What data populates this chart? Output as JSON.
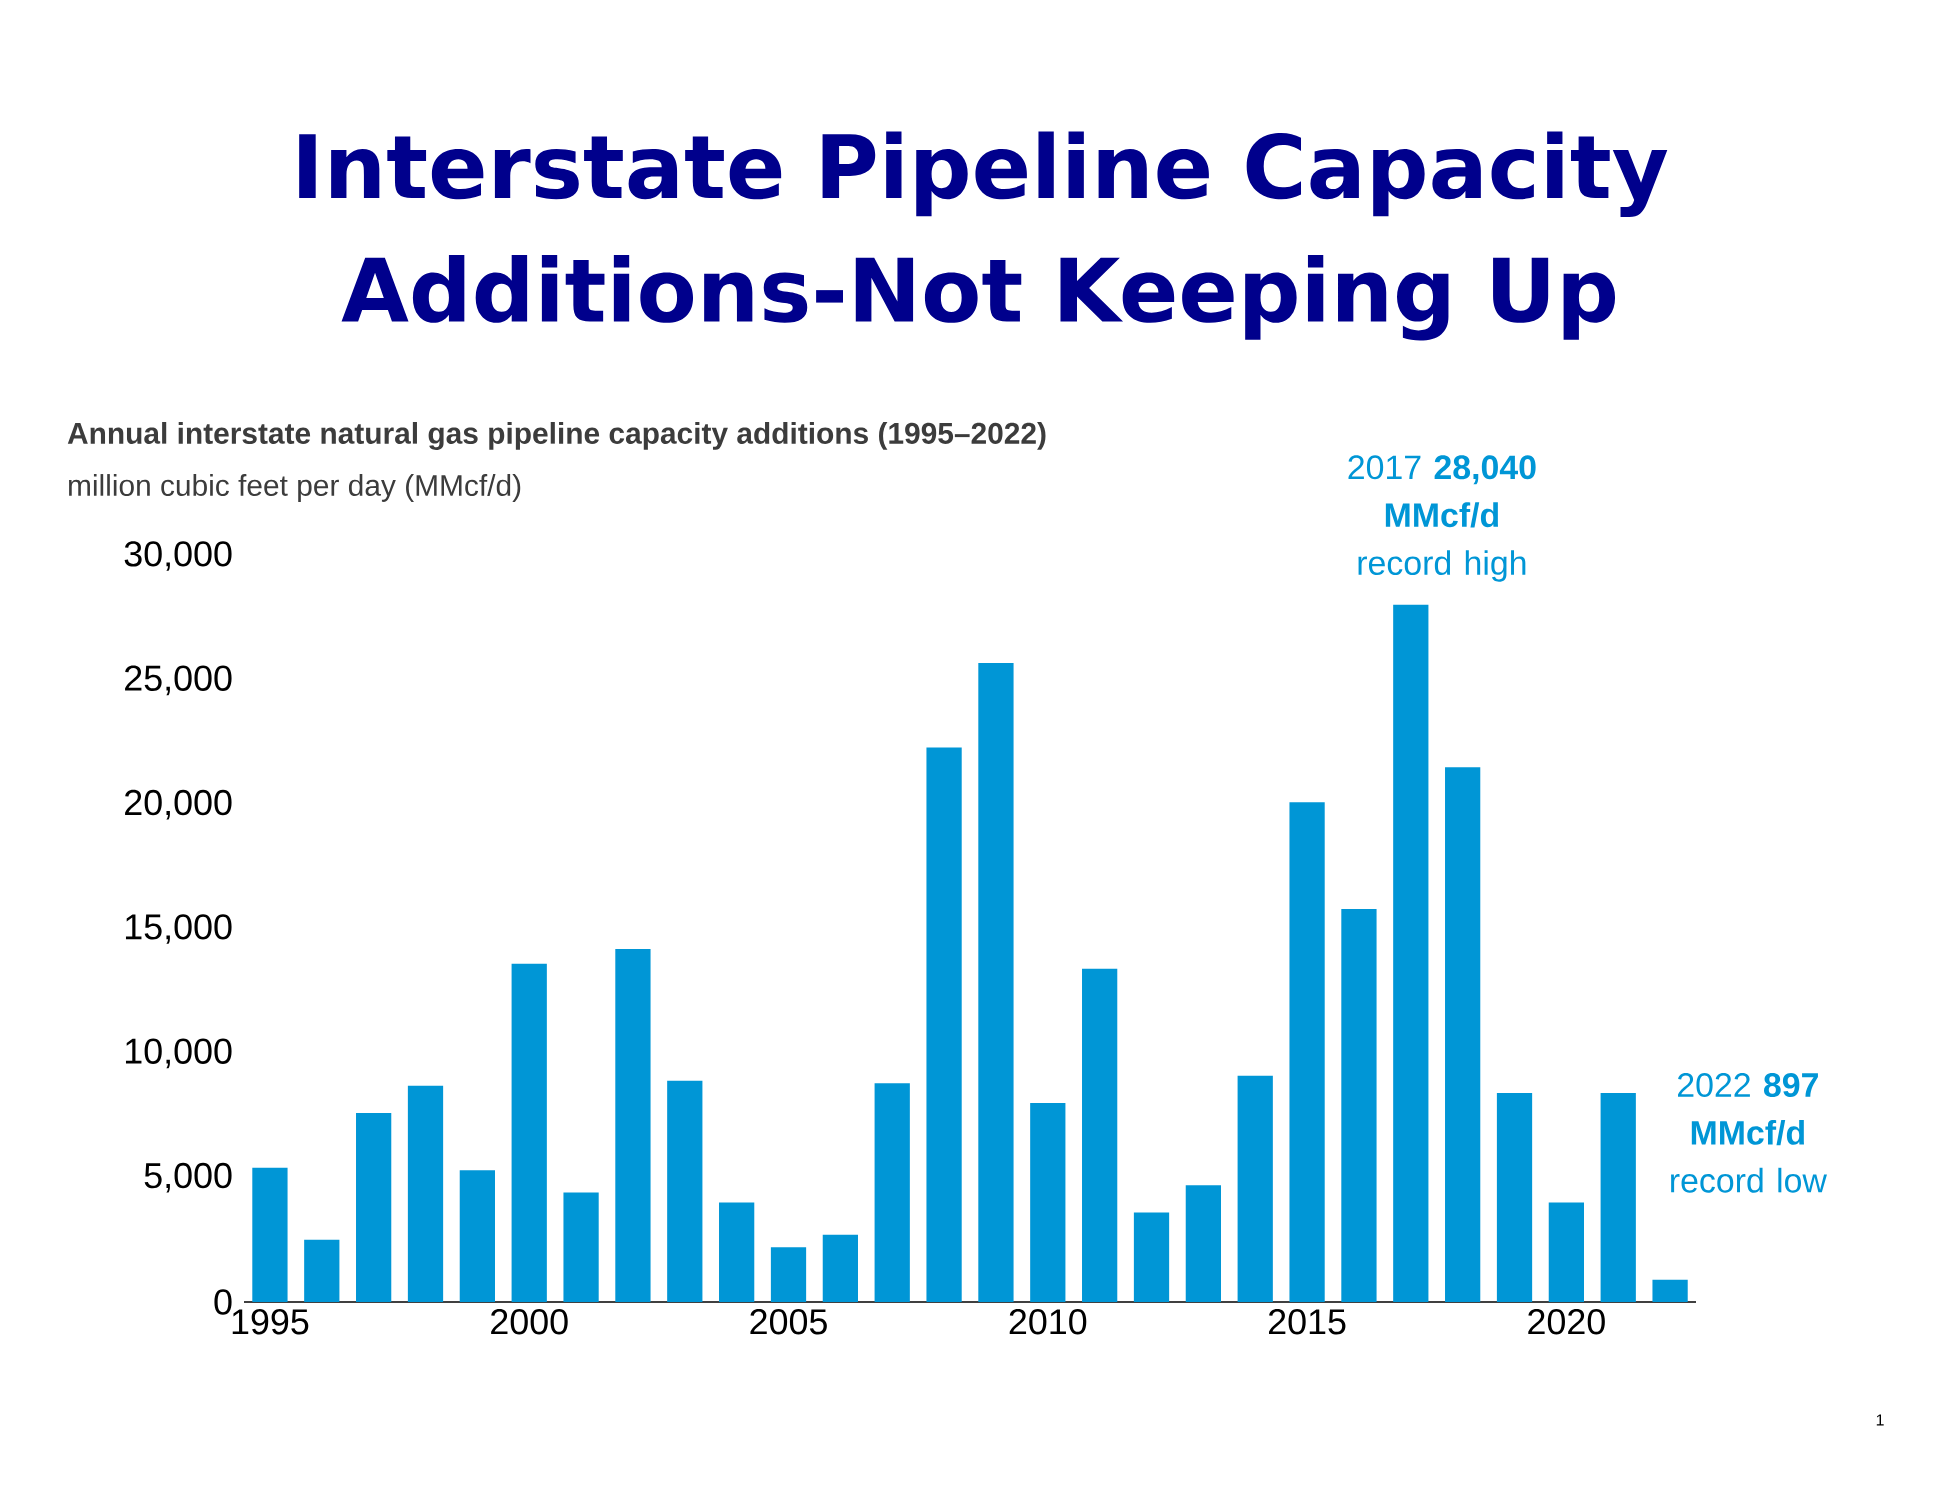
{
  "chart_data": {
    "type": "bar",
    "title": "Interstate Pipeline Capacity Additions-Not Keeping Up",
    "subtitle": "Annual interstate natural gas pipeline capacity additions (1995–2022)",
    "ylabel": "million cubic feet per day (MMcf/d)",
    "x": [
      1995,
      1996,
      1997,
      1998,
      1999,
      2000,
      2001,
      2002,
      2003,
      2004,
      2005,
      2006,
      2007,
      2008,
      2009,
      2010,
      2011,
      2012,
      2013,
      2014,
      2015,
      2016,
      2017,
      2018,
      2019,
      2020,
      2021,
      2022
    ],
    "values": [
      5400,
      2500,
      7600,
      8700,
      5300,
      13600,
      4400,
      14200,
      8900,
      4000,
      2200,
      2700,
      8800,
      22300,
      25700,
      8000,
      13400,
      3600,
      4700,
      9100,
      20100,
      15800,
      28040,
      21500,
      8400,
      4000,
      8400,
      897
    ],
    "color": "#0096d6",
    "xlim": [
      1994.5,
      2022.5
    ],
    "ylim": [
      0,
      30000
    ],
    "xticks": [
      1995,
      2000,
      2005,
      2010,
      2015,
      2020
    ],
    "yticks": [
      0,
      {
        "value": 5000,
        "label": "5,000"
      },
      {
        "value": 10000,
        "label": "10,000"
      },
      {
        "value": 15000,
        "label": "15,000"
      },
      {
        "value": 20000,
        "label": "20,000"
      },
      {
        "value": 25000,
        "label": "25,000"
      },
      {
        "value": 30000,
        "label": "30,000"
      }
    ],
    "grid": false,
    "annotations": [
      {
        "text": "2017 **28,040 MMcf/d** record high",
        "x": 2017,
        "y": 28040
      },
      {
        "text": "2022 **897 MMcf/d** record low",
        "x": 2022,
        "y": 897
      },
      "1"
    ]
  }
}
